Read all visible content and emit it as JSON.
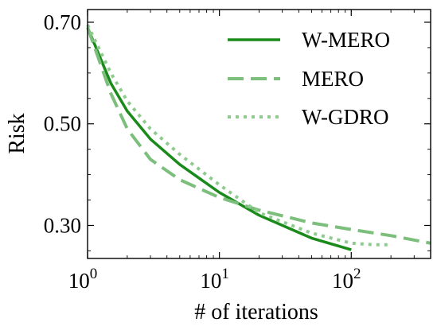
{
  "chart_data": {
    "type": "line",
    "xlabel": "# of iterations",
    "ylabel": "Risk",
    "x_scale": "log",
    "xlim": [
      1,
      400
    ],
    "ylim": [
      0.235,
      0.725
    ],
    "x_ticks": [
      {
        "value": 1,
        "base": "10",
        "exp": "0"
      },
      {
        "value": 10,
        "base": "10",
        "exp": "1"
      },
      {
        "value": 100,
        "base": "10",
        "exp": "2"
      }
    ],
    "y_ticks": [
      {
        "value": 0.3,
        "label": "0.30"
      },
      {
        "value": 0.5,
        "label": "0.50"
      },
      {
        "value": 0.7,
        "label": "0.70"
      }
    ],
    "grid": false,
    "legend_position": "top-right",
    "series": [
      {
        "name": "W-MERO",
        "color": "#1a8a1a",
        "style": "solid",
        "x": [
          1,
          1.5,
          2,
          3,
          5,
          10,
          20,
          50,
          100
        ],
        "y": [
          0.69,
          0.58,
          0.525,
          0.47,
          0.42,
          0.365,
          0.32,
          0.275,
          0.252
        ]
      },
      {
        "name": "MERO",
        "color": "#7cbf7c",
        "style": "dashed",
        "x": [
          1,
          1.5,
          2,
          3,
          5,
          10,
          20,
          50,
          100,
          200,
          400
        ],
        "y": [
          0.69,
          0.56,
          0.49,
          0.43,
          0.39,
          0.355,
          0.33,
          0.305,
          0.292,
          0.28,
          0.265
        ]
      },
      {
        "name": "W-GDRO",
        "color": "#8fcb8f",
        "style": "dotted",
        "x": [
          1,
          1.5,
          2,
          3,
          5,
          10,
          20,
          50,
          100,
          150,
          200
        ],
        "y": [
          0.695,
          0.6,
          0.545,
          0.49,
          0.44,
          0.38,
          0.325,
          0.285,
          0.265,
          0.262,
          0.262
        ]
      }
    ]
  }
}
